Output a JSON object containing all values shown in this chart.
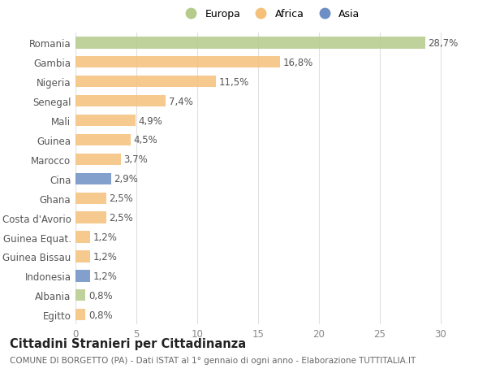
{
  "categories": [
    "Egitto",
    "Albania",
    "Indonesia",
    "Guinea Bissau",
    "Guinea Equat.",
    "Costa d'Avorio",
    "Ghana",
    "Cina",
    "Marocco",
    "Guinea",
    "Mali",
    "Senegal",
    "Nigeria",
    "Gambia",
    "Romania"
  ],
  "values": [
    0.8,
    0.8,
    1.2,
    1.2,
    1.2,
    2.5,
    2.5,
    2.9,
    3.7,
    4.5,
    4.9,
    7.4,
    11.5,
    16.8,
    28.7
  ],
  "labels": [
    "0,8%",
    "0,8%",
    "1,2%",
    "1,2%",
    "1,2%",
    "2,5%",
    "2,5%",
    "2,9%",
    "3,7%",
    "4,5%",
    "4,9%",
    "7,4%",
    "11,5%",
    "16,8%",
    "28,7%"
  ],
  "colors": [
    "#f5c07a",
    "#b5cb8b",
    "#6d8fc5",
    "#f5c07a",
    "#f5c07a",
    "#f5c07a",
    "#f5c07a",
    "#6d8fc5",
    "#f5c07a",
    "#f5c07a",
    "#f5c07a",
    "#f5c07a",
    "#f5c07a",
    "#f5c07a",
    "#b5cb8b"
  ],
  "legend_labels": [
    "Europa",
    "Africa",
    "Asia"
  ],
  "legend_colors": [
    "#b5cb8b",
    "#f5c07a",
    "#6d8fc5"
  ],
  "title": "Cittadini Stranieri per Cittadinanza",
  "subtitle": "COMUNE DI BORGETTO (PA) - Dati ISTAT al 1° gennaio di ogni anno - Elaborazione TUTTITALIA.IT",
  "xlim": [
    0,
    32
  ],
  "xticks": [
    0,
    5,
    10,
    15,
    20,
    25,
    30
  ],
  "background_color": "#ffffff",
  "bar_height": 0.6,
  "grid_color": "#e0e0e0",
  "label_fontsize": 8.5,
  "tick_fontsize": 8.5,
  "title_fontsize": 10.5,
  "subtitle_fontsize": 7.5
}
